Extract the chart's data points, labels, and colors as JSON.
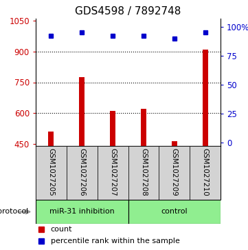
{
  "title": "GDS4598 / 7892748",
  "samples": [
    "GSM1027205",
    "GSM1027206",
    "GSM1027207",
    "GSM1027208",
    "GSM1027209",
    "GSM1027210"
  ],
  "counts": [
    510,
    775,
    610,
    620,
    465,
    910
  ],
  "percentiles": [
    92,
    95,
    92,
    92,
    90,
    95
  ],
  "ylim_left": [
    440,
    1060
  ],
  "ylim_right": [
    -3,
    107
  ],
  "yticks_left": [
    450,
    600,
    750,
    900,
    1050
  ],
  "yticks_right": [
    0,
    25,
    50,
    75,
    100
  ],
  "bar_color": "#cc0000",
  "square_color": "#0000cc",
  "bar_bottom": 440,
  "sample_box_color": "#d3d3d3",
  "group_color": "#90EE90",
  "grid_color": "#111111",
  "title_fontsize": 11,
  "tick_fontsize": 8.5,
  "legend_fontsize": 8
}
